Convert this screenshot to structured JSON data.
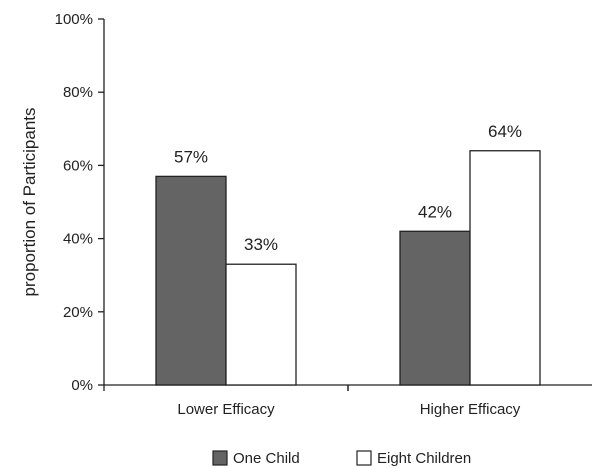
{
  "chart_data": {
    "type": "bar",
    "title": "",
    "xlabel": "",
    "ylabel": "proportion of Participants",
    "categories": [
      "Lower Efficacy",
      "Higher Efficacy"
    ],
    "series": [
      {
        "name": "One Child",
        "values": [
          57,
          42
        ],
        "labels": [
          "57%",
          "42%"
        ],
        "color": "#646464"
      },
      {
        "name": "Eight Children",
        "values": [
          33,
          64
        ],
        "labels": [
          "33%",
          "64%"
        ],
        "color": "#ffffff"
      }
    ],
    "ylim": [
      0,
      100
    ],
    "yticks": [
      0,
      20,
      40,
      60,
      80,
      100
    ],
    "ytick_labels": [
      "0%",
      "20%",
      "40%",
      "60%",
      "80%",
      "100%"
    ],
    "grid": false,
    "legend_position": "bottom"
  }
}
